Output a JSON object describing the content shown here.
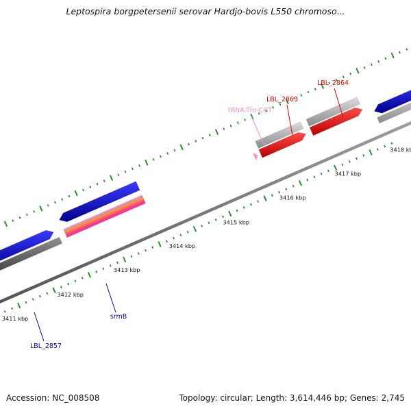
{
  "title": "Leptospira borgpetersenii serovar Hardjo-bovis L550 chromoso...",
  "footer": {
    "accession": "Accession: NC_008508",
    "stats": "Topology: circular; Length: 3,614,446 bp; Genes: 2,745"
  },
  "scale_labels": [
    "3411 kbp",
    "3412 kbp",
    "3413 kbp",
    "3414 kbp",
    "3415 kbp",
    "3416 kbp",
    "3417 kbp",
    "3418 kbp"
  ],
  "gene_labels": [
    {
      "text": "LBL_2864",
      "color": "#dd0000"
    },
    {
      "text": "LBL_2863",
      "color": "#dd0000"
    },
    {
      "text": "tRNA-Thr-CGT",
      "color": "#f08cc8"
    },
    {
      "text": "srmB",
      "color": "#0000aa"
    },
    {
      "text": "LBL_2857",
      "color": "#0000aa"
    }
  ],
  "colors": {
    "backbone": "#7f7f7f",
    "tick": "#2a8a2a",
    "cds_blue": "#0000ee",
    "cds_red": "#ff0000",
    "cds_gray": "#b8b8b8",
    "cds_dark": "#666666",
    "trna": "#f08cc8"
  }
}
